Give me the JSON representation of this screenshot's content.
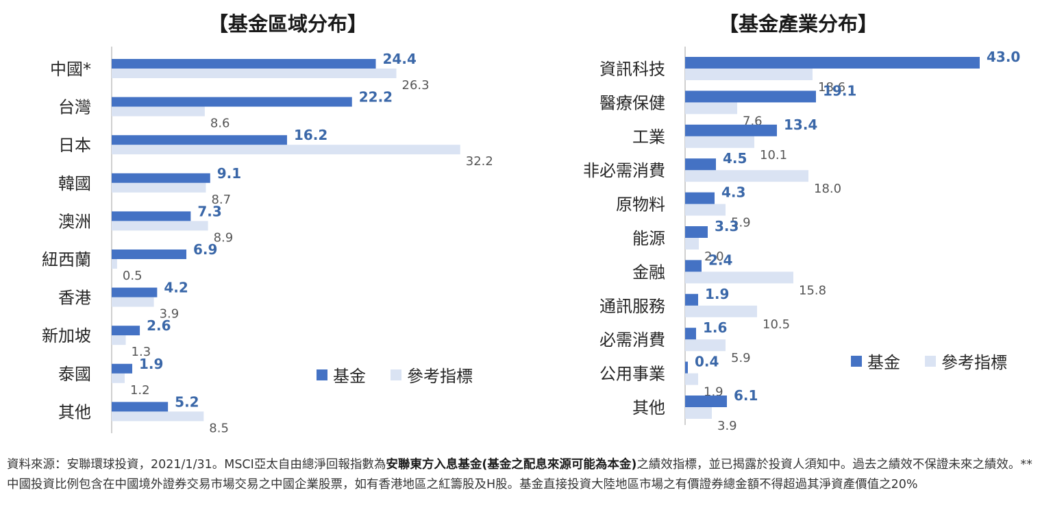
{
  "colors": {
    "fund": "#4472c4",
    "benchmark": "#dae3f3",
    "fund_label": "#3a67a8",
    "axis": "#bfbfbf"
  },
  "chart_data": [
    {
      "type": "bar",
      "orientation": "horizontal",
      "title": "【基金區域分布】",
      "categories": [
        "中國*",
        "台灣",
        "日本",
        "韓國",
        "澳洲",
        "紐西蘭",
        "香港",
        "新加坡",
        "泰國",
        "其他"
      ],
      "series": [
        {
          "name": "基金",
          "values": [
            24.4,
            22.2,
            16.2,
            9.1,
            7.3,
            6.9,
            4.2,
            2.6,
            1.9,
            5.2
          ]
        },
        {
          "name": "參考指標",
          "values": [
            26.3,
            8.6,
            32.2,
            8.7,
            8.9,
            0.5,
            3.9,
            1.3,
            1.2,
            8.5
          ]
        }
      ],
      "legend": "bottom-right",
      "grid": false
    },
    {
      "type": "bar",
      "orientation": "horizontal",
      "title": "【基金產業分布】",
      "categories": [
        "資訊科技",
        "醫療保健",
        "工業",
        "非必需消費",
        "原物料",
        "能源",
        "金融",
        "通訊服務",
        "必需消費",
        "公用事業",
        "其他"
      ],
      "series": [
        {
          "name": "基金",
          "values": [
            43.0,
            19.1,
            13.4,
            4.5,
            4.3,
            3.3,
            2.4,
            1.9,
            1.6,
            0.4,
            6.1
          ]
        },
        {
          "name": "參考指標",
          "values": [
            18.6,
            7.6,
            10.1,
            18.0,
            5.9,
            2.0,
            15.8,
            10.5,
            5.9,
            1.9,
            3.9
          ]
        }
      ],
      "legend": "bottom-right",
      "grid": false
    }
  ],
  "legend": {
    "fund": "基金",
    "benchmark": "參考指標"
  },
  "footnote": {
    "part1": "資料來源：安聯環球投資，2021/1/31。MSCI亞太自由總淨回報指數為",
    "fund_name": "安聯東方入息基金(基金之配息來源可能為本金)",
    "part2": "之績效指標，並已揭露於投資人須知中。過去之績效不保證未來之績效。**中國投資比例包含在中國境外證券交易市場交易之中國企業股票，如有香港地區之紅籌股及H股。基金直接投資大陸地區市場之有價證券總金額不得超過其淨資產價值之20%"
  }
}
